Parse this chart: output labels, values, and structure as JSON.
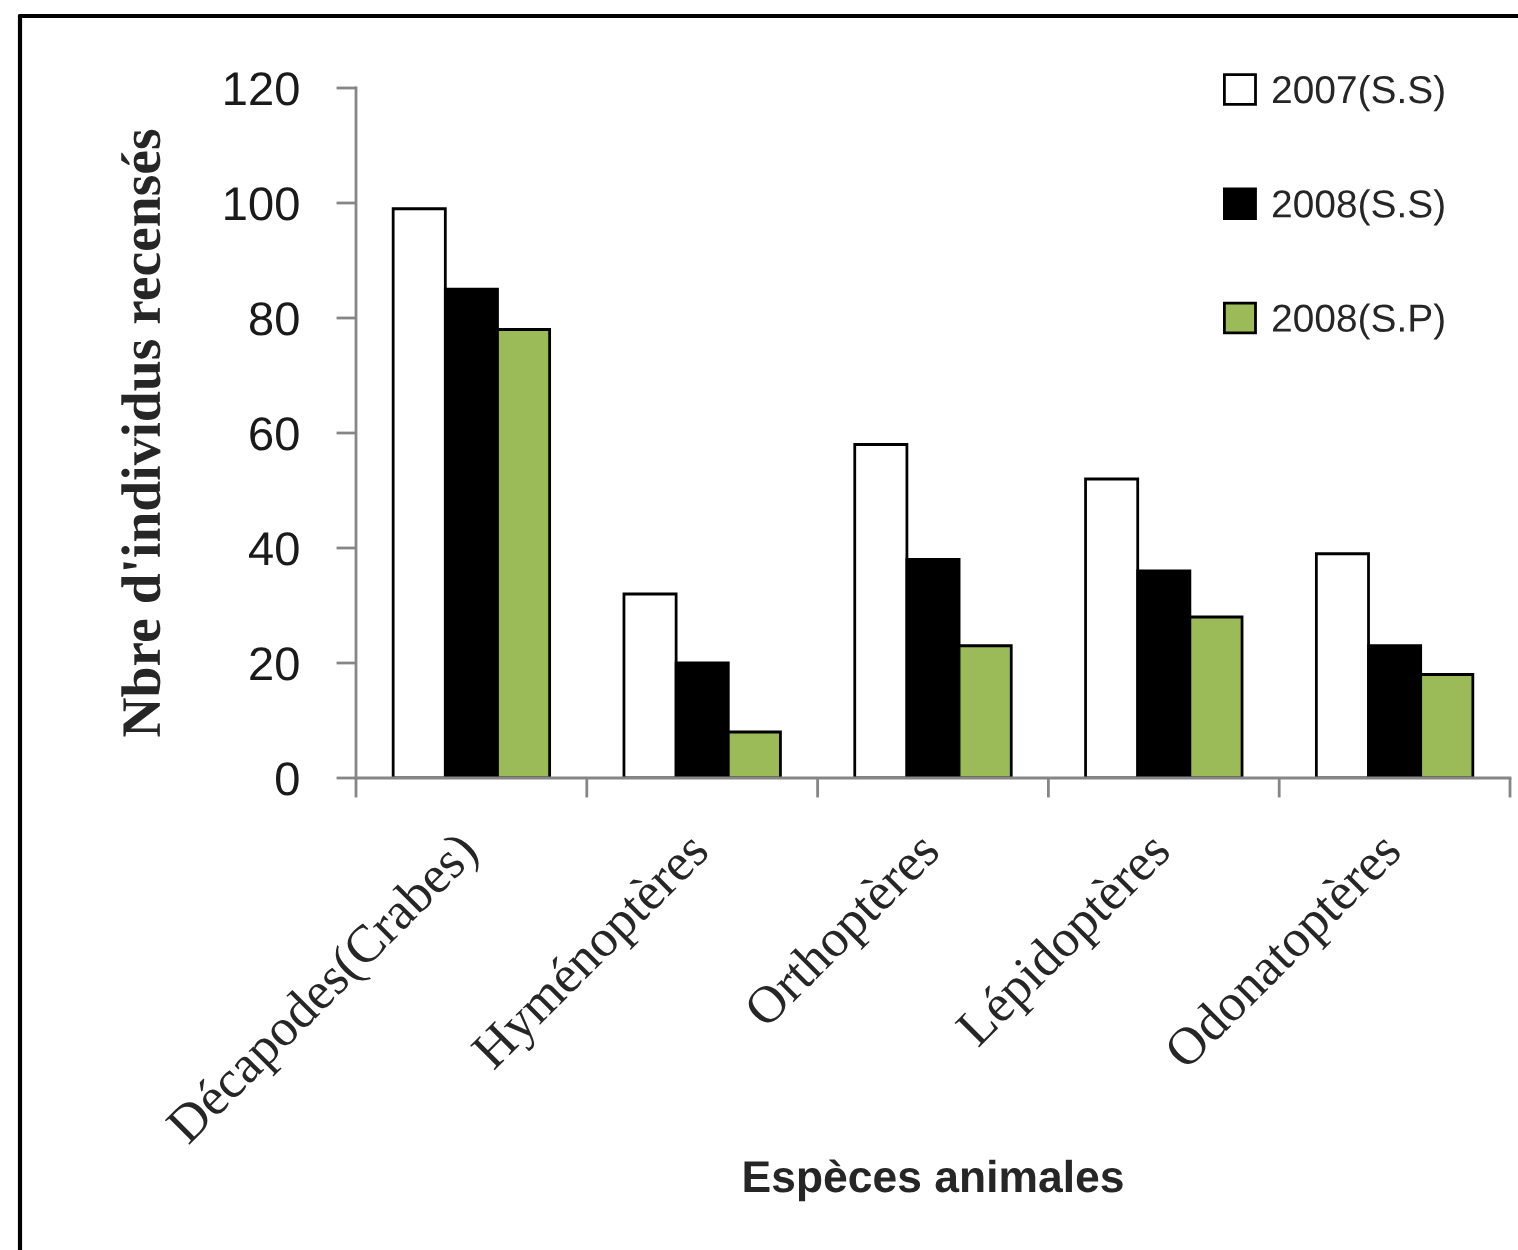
{
  "chart_data": {
    "type": "bar",
    "xlabel": "Espèces animales",
    "ylabel": "Nbre d'individus recensés",
    "categories": [
      "Décapodes(Crabes)",
      "Hyménoptères",
      "Orthoptères",
      "Lépidoptères",
      "Odonatoptères"
    ],
    "series": [
      {
        "name": "2007(S.S)",
        "color": "#ffffff",
        "values": [
          99,
          32,
          58,
          52,
          39
        ]
      },
      {
        "name": "2008(S.S)",
        "color": "#000000",
        "values": [
          85,
          20,
          38,
          36,
          23
        ]
      },
      {
        "name": "2008(S.P)",
        "color": "#9bbb59",
        "values": [
          78,
          8,
          23,
          28,
          18
        ]
      }
    ],
    "ylim": [
      0,
      120
    ],
    "yticks": [
      0,
      20,
      40,
      60,
      80,
      100,
      120
    ],
    "grid": false,
    "legend": "top right"
  }
}
